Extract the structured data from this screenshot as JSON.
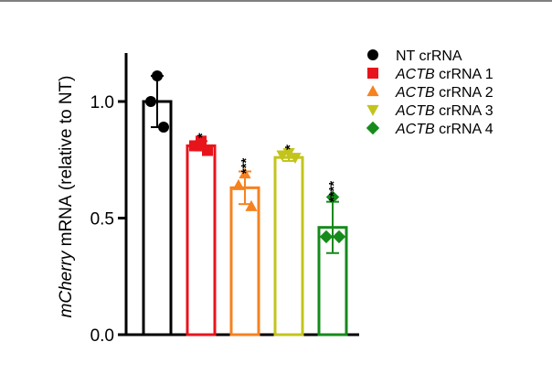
{
  "chart_data": {
    "type": "bar",
    "ylabel_italic": "mCherry",
    "ylabel_rest": " mRNA (relative to NT)",
    "ylim": [
      0,
      1.2
    ],
    "yticks": [
      "0.0",
      "0.5",
      "1.0"
    ],
    "grid": false,
    "legend_position": "top-right",
    "series": [
      {
        "gene": "NT",
        "suffix": " crRNA",
        "italic": false,
        "color": "#000000",
        "marker": "circle",
        "mean": 1.0,
        "error": 0.11,
        "points": [
          1.11,
          1.0,
          0.89
        ],
        "significance": ""
      },
      {
        "gene": "ACTB",
        "suffix": " crRNA 1",
        "italic": true,
        "color": "#e8141c",
        "marker": "square",
        "mean": 0.81,
        "error": 0.02,
        "points": [
          0.83,
          0.81,
          0.79
        ],
        "significance": "*"
      },
      {
        "gene": "ACTB",
        "suffix": " crRNA 2",
        "italic": true,
        "color": "#f5821f",
        "marker": "triangle-up",
        "mean": 0.63,
        "error": 0.07,
        "points": [
          0.69,
          0.64,
          0.55
        ],
        "significance": "***"
      },
      {
        "gene": "ACTB",
        "suffix": " crRNA 3",
        "italic": true,
        "color": "#c3c41b",
        "marker": "triangle-down",
        "mean": 0.76,
        "error": 0.015,
        "points": [
          0.78,
          0.77,
          0.76
        ],
        "significance": "*"
      },
      {
        "gene": "ACTB",
        "suffix": " crRNA 4",
        "italic": true,
        "color": "#168a1b",
        "marker": "diamond",
        "mean": 0.46,
        "error": 0.11,
        "points": [
          0.59,
          0.42,
          0.42
        ],
        "significance": "****"
      }
    ]
  }
}
